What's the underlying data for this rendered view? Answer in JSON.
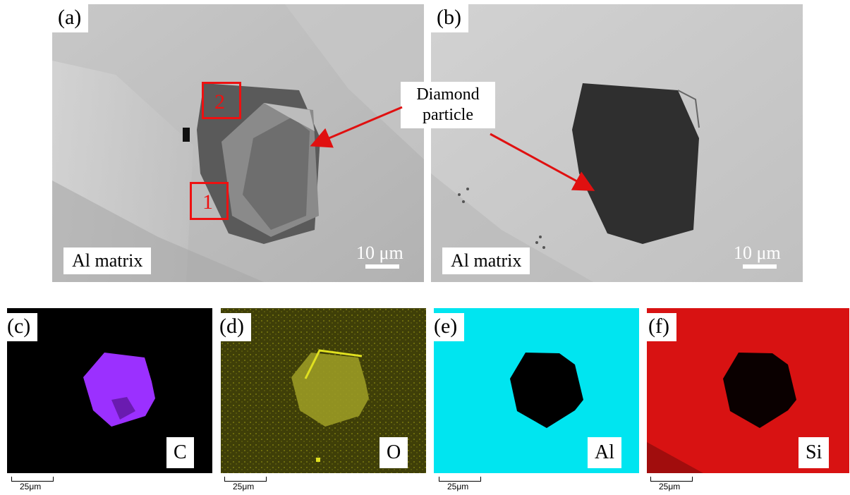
{
  "panels": {
    "a": {
      "label": "(a)",
      "matrix": "Al matrix",
      "scale": "10 μm",
      "region1": "1",
      "region2": "2"
    },
    "b": {
      "label": "(b)",
      "matrix": "Al matrix",
      "scale": "10 μm"
    },
    "c": {
      "label": "(c)",
      "element": "C",
      "scale": "25μm",
      "map_color": "#9b30ff"
    },
    "d": {
      "label": "(d)",
      "element": "O",
      "scale": "25μm",
      "map_color": "#e0e020"
    },
    "e": {
      "label": "(e)",
      "element": "Al",
      "scale": "25μm",
      "map_color": "#00e5f0"
    },
    "f": {
      "label": "(f)",
      "element": "Si",
      "scale": "25μm",
      "map_color": "#e01010"
    }
  },
  "annotation": {
    "line1": "Diamond",
    "line2": "particle",
    "arrow_color": "#e01010"
  }
}
